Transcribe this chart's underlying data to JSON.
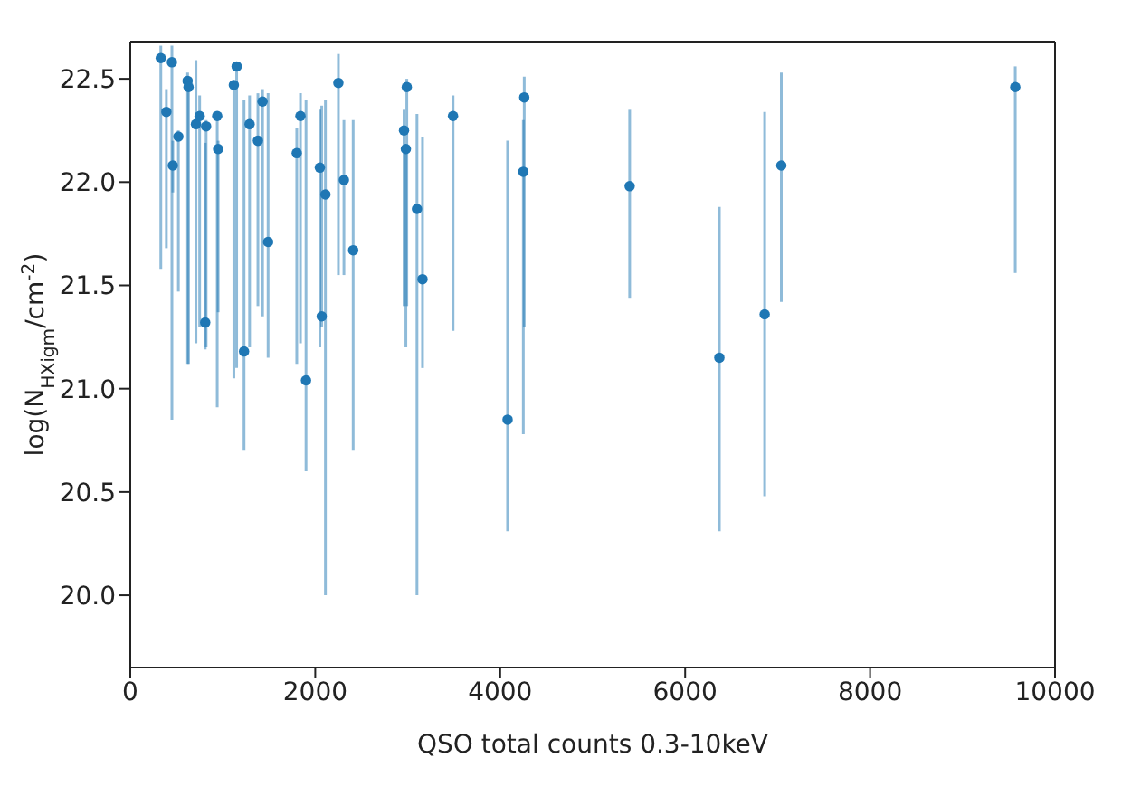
{
  "chart_data": {
    "type": "scatter",
    "xlabel": "QSO total counts 0.3-10keV",
    "ylabel": "log(N$_{HXigm}$/cm$^{-2}$)",
    "xlim": [
      0,
      10000
    ],
    "xticks": [
      0,
      2000,
      4000,
      6000,
      8000,
      10000
    ],
    "ylim": [
      19.65,
      22.68
    ],
    "yticks": [
      {
        "value": 20,
        "label": "20.0"
      },
      20.5,
      {
        "value": 21,
        "label": "21.0"
      },
      21.5,
      {
        "value": 22,
        "label": "22.0"
      },
      22.5
    ],
    "grid": false,
    "legend": false,
    "marker": "circle",
    "series": [
      {
        "color": "#1f77b4",
        "x": [
          330,
          390,
          450,
          460,
          520,
          620,
          630,
          710,
          750,
          810,
          820,
          940,
          950,
          1120,
          1150,
          1230,
          1290,
          1380,
          1430,
          1490,
          1800,
          1840,
          1900,
          2050,
          2070,
          2110,
          2250,
          2310,
          2410,
          2960,
          2990,
          2980,
          3100,
          3160,
          3490,
          4080,
          4260,
          4250,
          5400,
          6370,
          6860,
          7040,
          9570
        ],
        "values": [
          22.6,
          22.34,
          22.58,
          22.08,
          22.22,
          22.49,
          22.46,
          22.28,
          22.32,
          21.32,
          22.27,
          22.32,
          22.16,
          22.47,
          22.56,
          21.18,
          22.28,
          22.2,
          22.39,
          21.71,
          22.14,
          22.32,
          21.04,
          22.07,
          21.35,
          21.94,
          22.48,
          22.01,
          21.67,
          22.25,
          22.46,
          22.16,
          21.87,
          21.53,
          22.32,
          20.85,
          22.41,
          22.05,
          21.98,
          21.15,
          21.36,
          22.08,
          22.46
        ],
        "errors": [
          [
            21.58,
            22.66
          ],
          [
            21.68,
            22.45
          ],
          [
            20.85,
            22.66
          ],
          [
            21.95,
            22.2
          ],
          [
            21.47,
            22.25
          ],
          [
            21.12,
            22.53
          ],
          [
            21.12,
            22.5
          ],
          [
            21.22,
            22.59
          ],
          [
            21.3,
            22.42
          ],
          [
            21.19,
            22.19
          ],
          [
            21.2,
            22.3
          ],
          [
            20.91,
            22.32
          ],
          [
            21.37,
            22.2
          ],
          [
            21.05,
            22.47
          ],
          [
            21.1,
            22.58
          ],
          [
            20.7,
            22.4
          ],
          [
            21.2,
            22.42
          ],
          [
            21.4,
            22.43
          ],
          [
            21.35,
            22.45
          ],
          [
            21.15,
            22.43
          ],
          [
            21.12,
            22.26
          ],
          [
            21.22,
            22.43
          ],
          [
            20.6,
            22.4
          ],
          [
            21.2,
            22.35
          ],
          [
            21.3,
            22.37
          ],
          [
            20.0,
            22.4
          ],
          [
            21.55,
            22.62
          ],
          [
            21.55,
            22.3
          ],
          [
            20.7,
            22.3
          ],
          [
            21.4,
            22.35
          ],
          [
            21.4,
            22.5
          ],
          [
            21.2,
            22.16
          ],
          [
            20.0,
            22.33
          ],
          [
            21.1,
            22.22
          ],
          [
            21.28,
            22.42
          ],
          [
            20.31,
            22.2
          ],
          [
            21.3,
            22.51
          ],
          [
            20.78,
            22.3
          ],
          [
            21.44,
            22.35
          ],
          [
            20.31,
            21.88
          ],
          [
            20.48,
            22.34
          ],
          [
            21.42,
            22.53
          ],
          [
            21.56,
            22.56
          ]
        ]
      }
    ]
  }
}
